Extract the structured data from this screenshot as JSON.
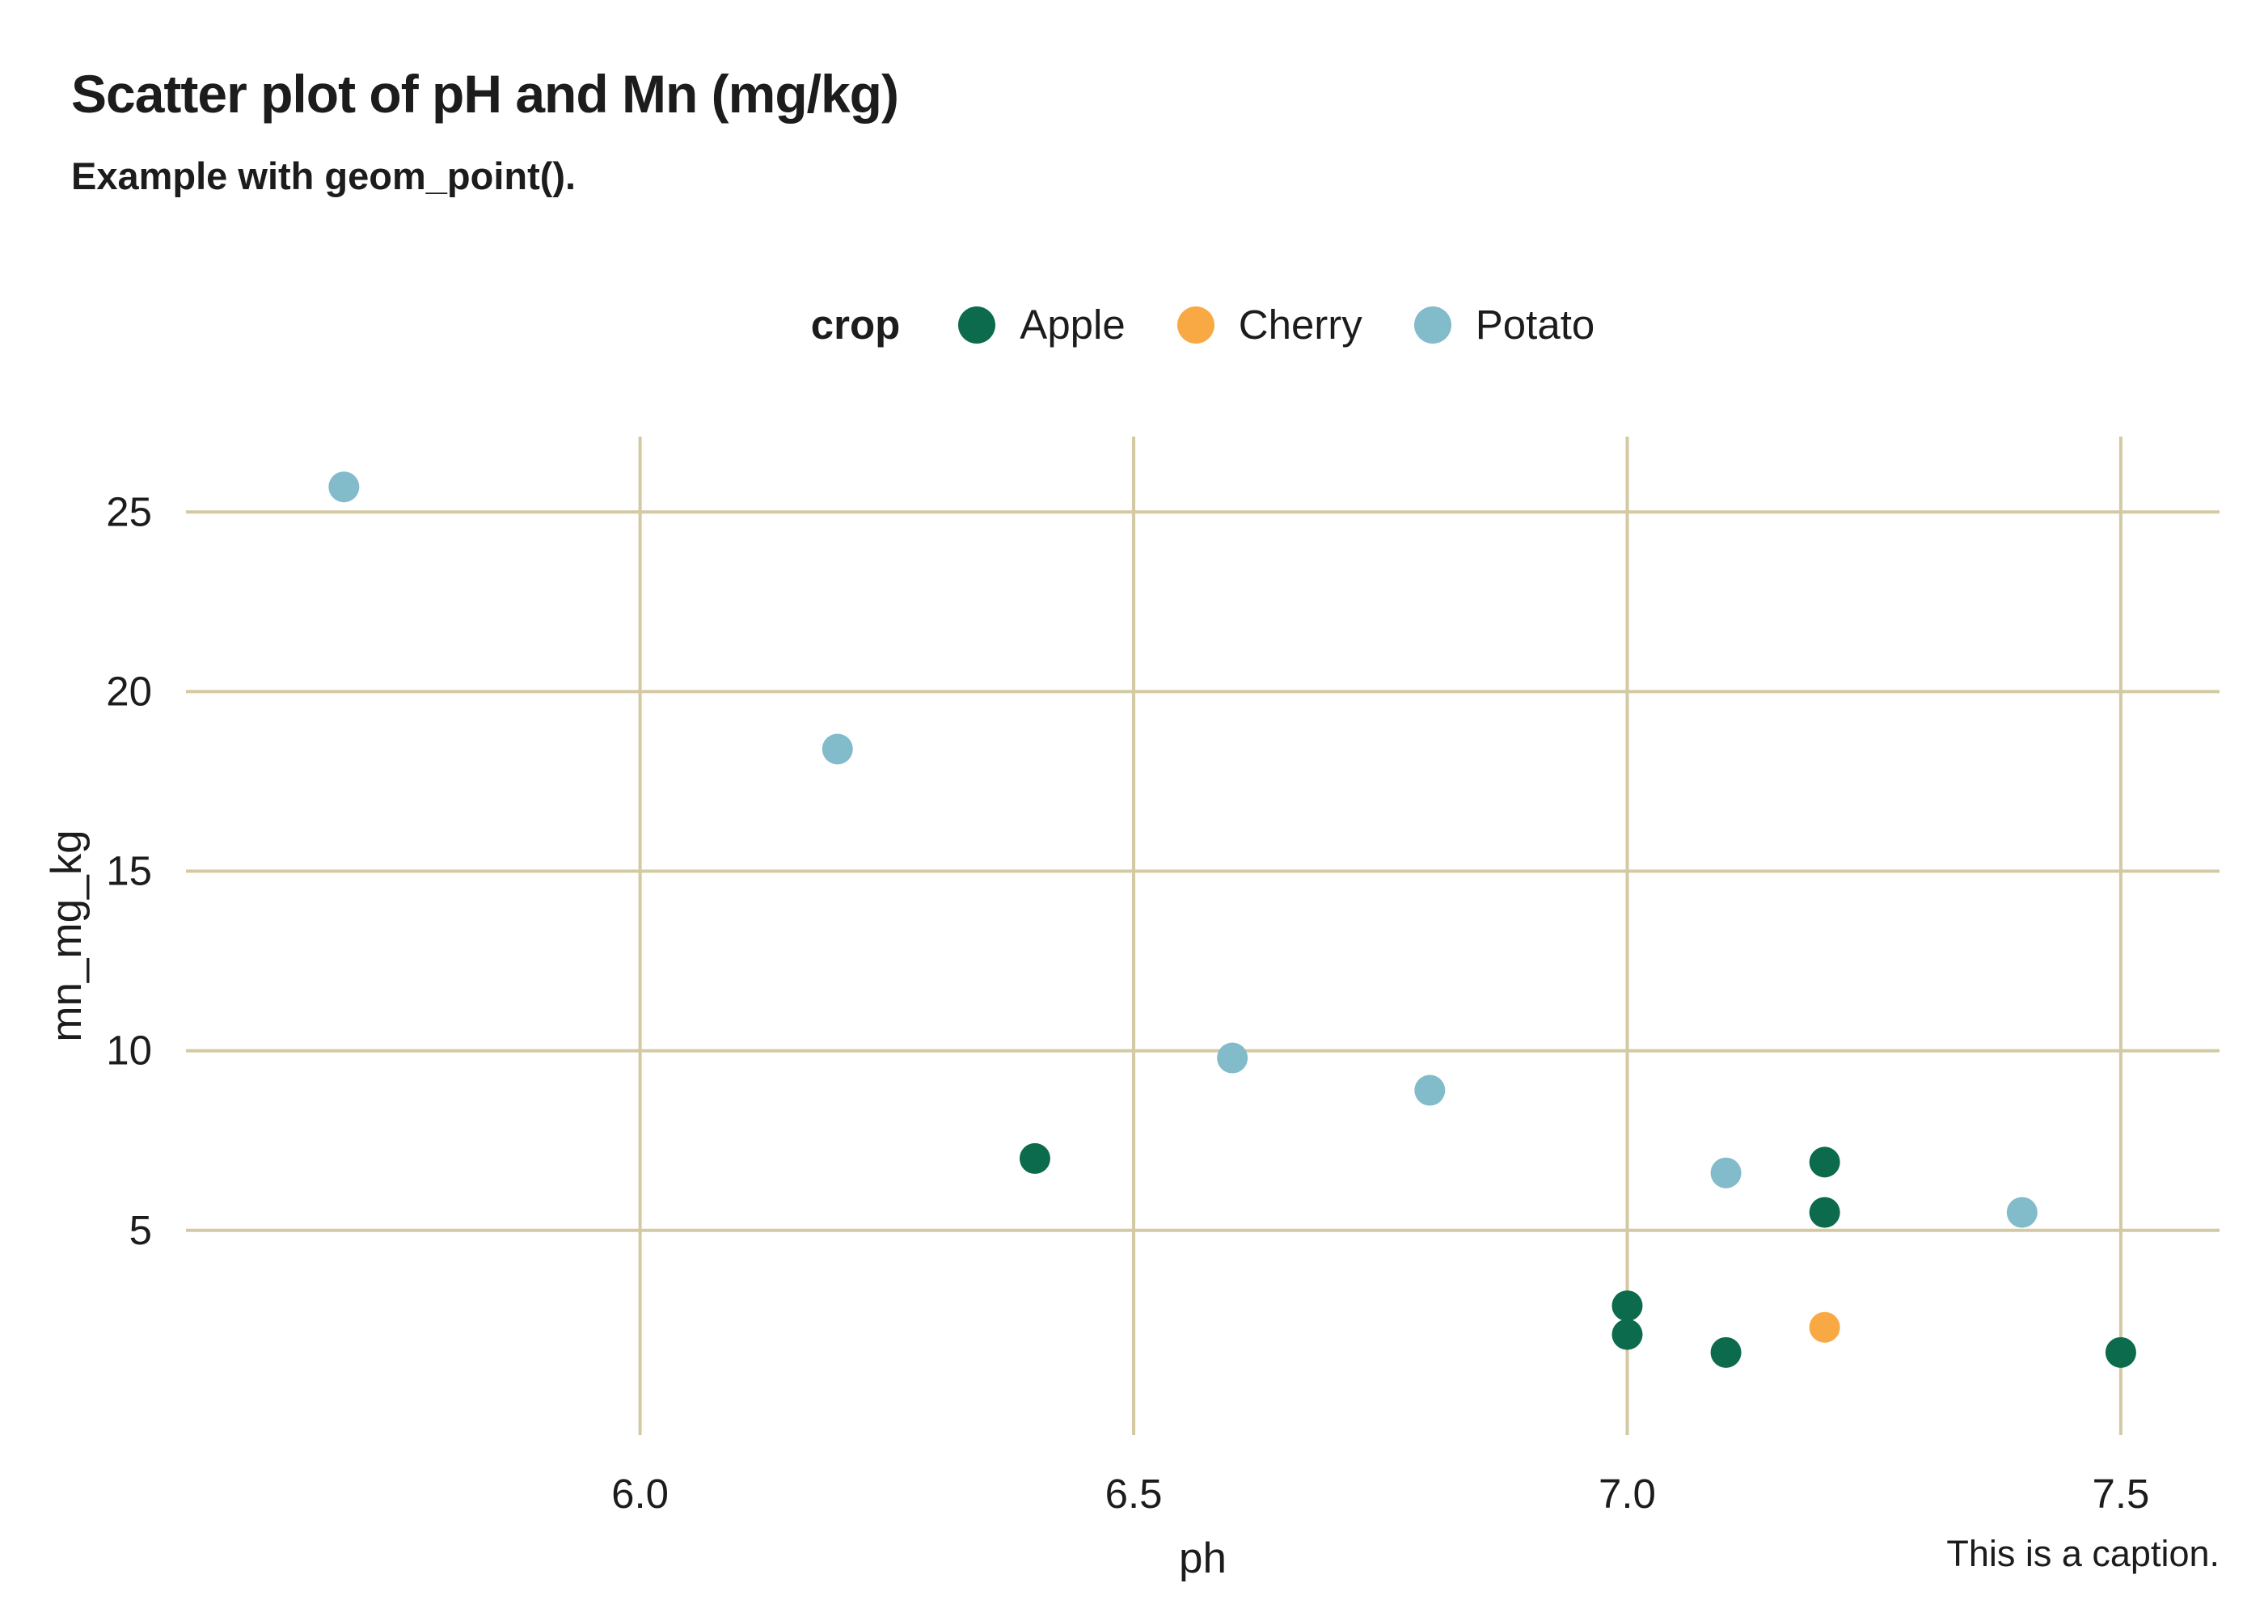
{
  "colors": {
    "text": "#1c1c1c",
    "grid": "#d3c9a2",
    "apple": "#0c6b4d",
    "cherry": "#f9a943",
    "potato": "#82bbca"
  },
  "chart_data": {
    "type": "scatter",
    "title": "Scatter plot of pH and Mn (mg/kg)",
    "subtitle": "Example with geom_point().",
    "caption": "This is a caption.",
    "legend_title": "crop",
    "legend_position": "top",
    "grid": true,
    "xlabel": "ph",
    "ylabel": "mn_mg_kg",
    "xlim": [
      5.54,
      7.6
    ],
    "ylim": [
      -0.7,
      27.1
    ],
    "x_ticks": [
      6.0,
      6.5,
      7.0,
      7.5
    ],
    "x_tick_labels": [
      "6.0",
      "6.5",
      "7.0",
      "7.5"
    ],
    "y_ticks": [
      5,
      10,
      15,
      20,
      25
    ],
    "y_tick_labels": [
      "5",
      "10",
      "15",
      "20",
      "25"
    ],
    "series": [
      {
        "name": "Apple",
        "color": "#0c6b4d",
        "points": [
          [
            6.4,
            7.0
          ],
          [
            7.0,
            2.9
          ],
          [
            7.0,
            2.1
          ],
          [
            7.1,
            1.6
          ],
          [
            7.2,
            6.9
          ],
          [
            7.2,
            5.5
          ],
          [
            7.5,
            1.6
          ]
        ]
      },
      {
        "name": "Cherry",
        "color": "#f9a943",
        "points": [
          [
            7.2,
            2.3
          ]
        ]
      },
      {
        "name": "Potato",
        "color": "#82bbca",
        "points": [
          [
            5.7,
            25.7
          ],
          [
            6.2,
            18.4
          ],
          [
            6.6,
            9.8
          ],
          [
            6.8,
            8.9
          ],
          [
            7.1,
            6.6
          ],
          [
            7.4,
            5.5
          ]
        ]
      }
    ]
  }
}
